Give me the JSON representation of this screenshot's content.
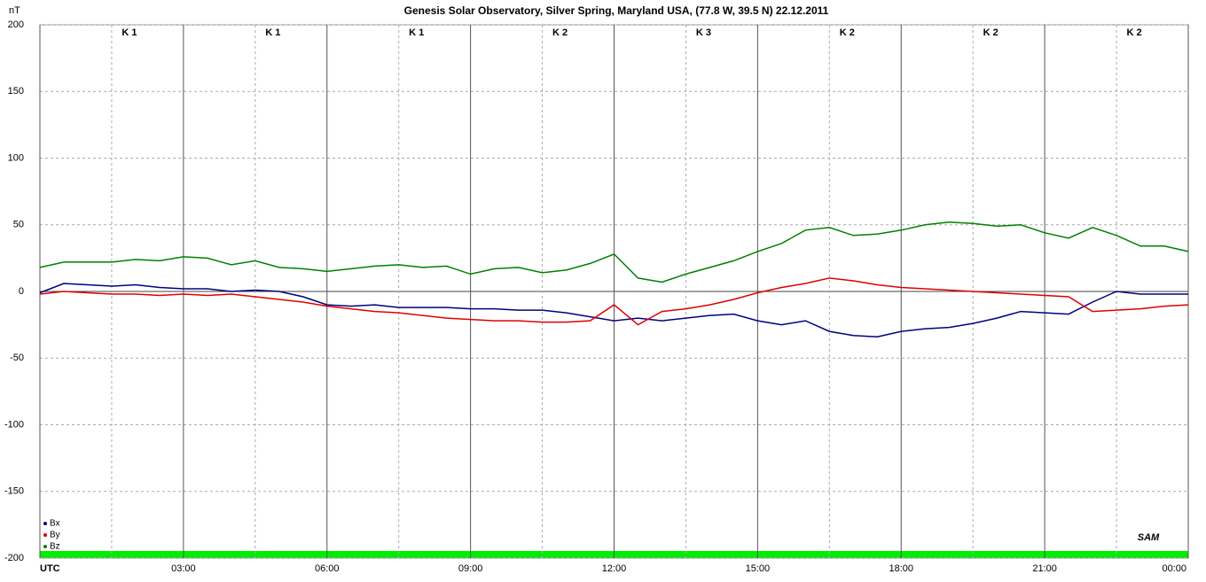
{
  "chart_data": {
    "type": "line",
    "title": "Genesis Solar Observatory, Silver Spring, Maryland USA, (77.8 W, 39.5 N)  22.12.2011",
    "y_label": "nT",
    "k_labels": [
      "K 1",
      "K 1",
      "K 1",
      "K 2",
      "K 3",
      "K 2",
      "K 2",
      "K 2"
    ],
    "logo": "SAM",
    "x": [
      0,
      0.5,
      1,
      1.5,
      2,
      2.5,
      3,
      3.5,
      4,
      4.5,
      5,
      5.5,
      6,
      6.5,
      7,
      7.5,
      8,
      8.5,
      9,
      9.5,
      10,
      10.5,
      11,
      11.5,
      12,
      12.5,
      13,
      13.5,
      14,
      14.5,
      15,
      15.5,
      16,
      16.5,
      17,
      17.5,
      18,
      18.5,
      19,
      19.5,
      20,
      20.5,
      21,
      21.5,
      22,
      22.5,
      23,
      23.5,
      24
    ],
    "series": [
      {
        "name": "Bx",
        "color": "#000080",
        "values": [
          -1,
          6,
          5,
          4,
          5,
          3,
          2,
          2,
          0,
          1,
          0,
          -4,
          -10,
          -11,
          -10,
          -12,
          -12,
          -12,
          -13,
          -13,
          -14,
          -14,
          -16,
          -19,
          -22,
          -20,
          -22,
          -20,
          -18,
          -17,
          -22,
          -25,
          -22,
          -30,
          -33,
          -34,
          -30,
          -28,
          -27,
          -24,
          -20,
          -15,
          -16,
          -17,
          -8,
          0,
          -2,
          -2,
          -2
        ]
      },
      {
        "name": "By",
        "color": "#e00000",
        "values": [
          -2,
          0,
          -1,
          -2,
          -2,
          -3,
          -2,
          -3,
          -2,
          -4,
          -6,
          -8,
          -11,
          -13,
          -15,
          -16,
          -18,
          -20,
          -21,
          -22,
          -22,
          -23,
          -23,
          -22,
          -10,
          -25,
          -15,
          -13,
          -10,
          -6,
          -1,
          3,
          6,
          10,
          8,
          5,
          3,
          2,
          1,
          0,
          -1,
          -2,
          -3,
          -4,
          -15,
          -14,
          -13,
          -11,
          -10
        ]
      },
      {
        "name": "Bz",
        "color": "#008000",
        "values": [
          18,
          22,
          22,
          22,
          24,
          23,
          26,
          25,
          20,
          23,
          18,
          17,
          15,
          17,
          19,
          20,
          18,
          19,
          13,
          17,
          18,
          14,
          16,
          21,
          28,
          10,
          7,
          13,
          18,
          23,
          30,
          36,
          46,
          48,
          42,
          43,
          46,
          50,
          52,
          51,
          49,
          50,
          44,
          40,
          48,
          42,
          34,
          34,
          30
        ]
      }
    ],
    "xlim": [
      0,
      24
    ],
    "xticks": [
      {
        "value": 0,
        "label": "UTC"
      },
      {
        "value": 3,
        "label": "03:00"
      },
      {
        "value": 6,
        "label": "06:00"
      },
      {
        "value": 9,
        "label": "09:00"
      },
      {
        "value": 12,
        "label": "12:00"
      },
      {
        "value": 15,
        "label": "15:00"
      },
      {
        "value": 18,
        "label": "18:00"
      },
      {
        "value": 21,
        "label": "21:00"
      },
      {
        "value": 24,
        "label": "00:00"
      }
    ],
    "ylim": [
      -200,
      200
    ],
    "yticks": [
      -200,
      -150,
      -100,
      -50,
      0,
      50,
      100,
      150,
      200
    ],
    "grid": true,
    "legend": "lower left"
  }
}
